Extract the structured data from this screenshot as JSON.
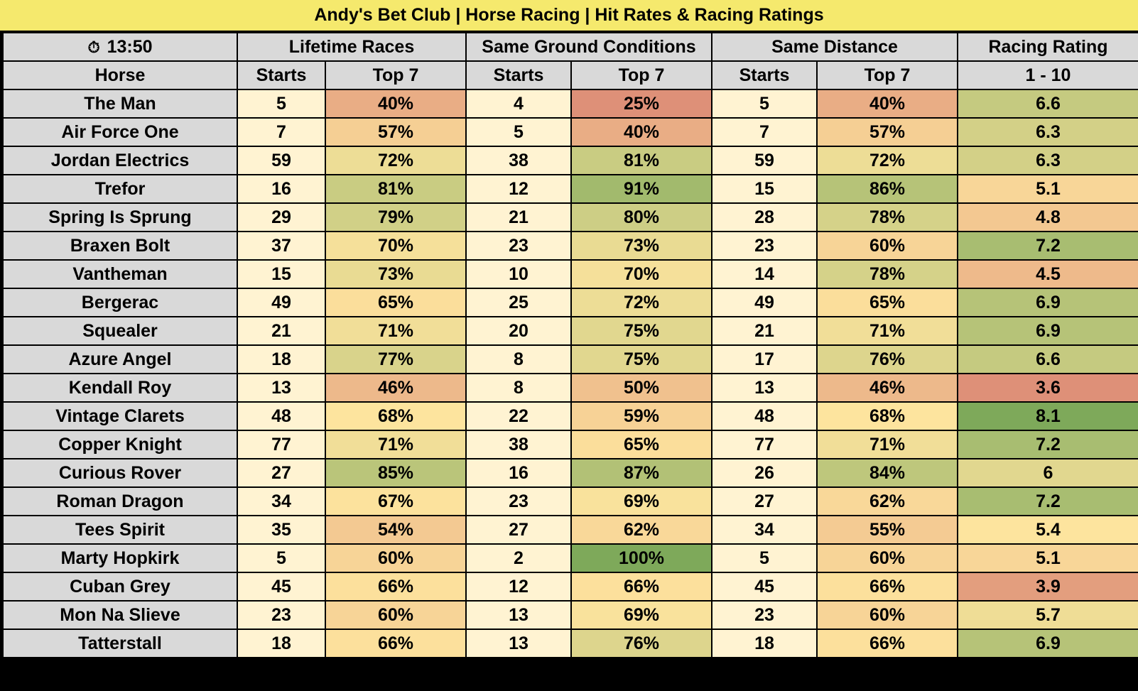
{
  "title": "Andy's Bet Club | Horse Racing | Hit Rates & Racing Ratings",
  "header": {
    "time": "13:50",
    "time_icon": "stopwatch-icon",
    "groups": [
      "Lifetime Races",
      "Same Ground Conditions",
      "Same Distance",
      "Racing Rating"
    ],
    "columns": [
      "Horse",
      "Starts",
      "Top 7",
      "Starts",
      "Top 7",
      "Starts",
      "Top 7",
      "1 - 10"
    ]
  },
  "colors": {
    "title_bg": "#f5e96d",
    "header_bg": "#d9d9d9",
    "starts_bg": "#fff3d2",
    "scale_low": "#de9078",
    "scale_mid": "#fde49e",
    "scale_high": "#7ea95a"
  },
  "rows": [
    {
      "horse": "The Man",
      "lifetime_starts": "5",
      "lifetime_top7": "40%",
      "ground_starts": "4",
      "ground_top7": "25%",
      "distance_starts": "5",
      "distance_top7": "40%",
      "rating": "6.6"
    },
    {
      "horse": "Air Force One",
      "lifetime_starts": "7",
      "lifetime_top7": "57%",
      "ground_starts": "5",
      "ground_top7": "40%",
      "distance_starts": "7",
      "distance_top7": "57%",
      "rating": "6.3"
    },
    {
      "horse": "Jordan Electrics",
      "lifetime_starts": "59",
      "lifetime_top7": "72%",
      "ground_starts": "38",
      "ground_top7": "81%",
      "distance_starts": "59",
      "distance_top7": "72%",
      "rating": "6.3"
    },
    {
      "horse": "Trefor",
      "lifetime_starts": "16",
      "lifetime_top7": "81%",
      "ground_starts": "12",
      "ground_top7": "91%",
      "distance_starts": "15",
      "distance_top7": "86%",
      "rating": "5.1"
    },
    {
      "horse": "Spring Is Sprung",
      "lifetime_starts": "29",
      "lifetime_top7": "79%",
      "ground_starts": "21",
      "ground_top7": "80%",
      "distance_starts": "28",
      "distance_top7": "78%",
      "rating": "4.8"
    },
    {
      "horse": "Braxen Bolt",
      "lifetime_starts": "37",
      "lifetime_top7": "70%",
      "ground_starts": "23",
      "ground_top7": "73%",
      "distance_starts": "23",
      "distance_top7": "60%",
      "rating": "7.2"
    },
    {
      "horse": "Vantheman",
      "lifetime_starts": "15",
      "lifetime_top7": "73%",
      "ground_starts": "10",
      "ground_top7": "70%",
      "distance_starts": "14",
      "distance_top7": "78%",
      "rating": "4.5"
    },
    {
      "horse": "Bergerac",
      "lifetime_starts": "49",
      "lifetime_top7": "65%",
      "ground_starts": "25",
      "ground_top7": "72%",
      "distance_starts": "49",
      "distance_top7": "65%",
      "rating": "6.9"
    },
    {
      "horse": "Squealer",
      "lifetime_starts": "21",
      "lifetime_top7": "71%",
      "ground_starts": "20",
      "ground_top7": "75%",
      "distance_starts": "21",
      "distance_top7": "71%",
      "rating": "6.9"
    },
    {
      "horse": "Azure Angel",
      "lifetime_starts": "18",
      "lifetime_top7": "77%",
      "ground_starts": "8",
      "ground_top7": "75%",
      "distance_starts": "17",
      "distance_top7": "76%",
      "rating": "6.6"
    },
    {
      "horse": "Kendall Roy",
      "lifetime_starts": "13",
      "lifetime_top7": "46%",
      "ground_starts": "8",
      "ground_top7": "50%",
      "distance_starts": "13",
      "distance_top7": "46%",
      "rating": "3.6"
    },
    {
      "horse": "Vintage Clarets",
      "lifetime_starts": "48",
      "lifetime_top7": "68%",
      "ground_starts": "22",
      "ground_top7": "59%",
      "distance_starts": "48",
      "distance_top7": "68%",
      "rating": "8.1"
    },
    {
      "horse": "Copper Knight",
      "lifetime_starts": "77",
      "lifetime_top7": "71%",
      "ground_starts": "38",
      "ground_top7": "65%",
      "distance_starts": "77",
      "distance_top7": "71%",
      "rating": "7.2"
    },
    {
      "horse": "Curious Rover",
      "lifetime_starts": "27",
      "lifetime_top7": "85%",
      "ground_starts": "16",
      "ground_top7": "87%",
      "distance_starts": "26",
      "distance_top7": "84%",
      "rating": "6"
    },
    {
      "horse": "Roman Dragon",
      "lifetime_starts": "34",
      "lifetime_top7": "67%",
      "ground_starts": "23",
      "ground_top7": "69%",
      "distance_starts": "27",
      "distance_top7": "62%",
      "rating": "7.2"
    },
    {
      "horse": "Tees Spirit",
      "lifetime_starts": "35",
      "lifetime_top7": "54%",
      "ground_starts": "27",
      "ground_top7": "62%",
      "distance_starts": "34",
      "distance_top7": "55%",
      "rating": "5.4"
    },
    {
      "horse": "Marty Hopkirk",
      "lifetime_starts": "5",
      "lifetime_top7": "60%",
      "ground_starts": "2",
      "ground_top7": "100%",
      "distance_starts": "5",
      "distance_top7": "60%",
      "rating": "5.1"
    },
    {
      "horse": "Cuban Grey",
      "lifetime_starts": "45",
      "lifetime_top7": "66%",
      "ground_starts": "12",
      "ground_top7": "66%",
      "distance_starts": "45",
      "distance_top7": "66%",
      "rating": "3.9"
    },
    {
      "horse": "Mon Na Slieve",
      "lifetime_starts": "23",
      "lifetime_top7": "60%",
      "ground_starts": "13",
      "ground_top7": "69%",
      "distance_starts": "23",
      "distance_top7": "60%",
      "rating": "5.7"
    },
    {
      "horse": "Tatterstall",
      "lifetime_starts": "18",
      "lifetime_top7": "66%",
      "ground_starts": "13",
      "ground_top7": "76%",
      "distance_starts": "18",
      "distance_top7": "66%",
      "rating": "6.9"
    }
  ]
}
